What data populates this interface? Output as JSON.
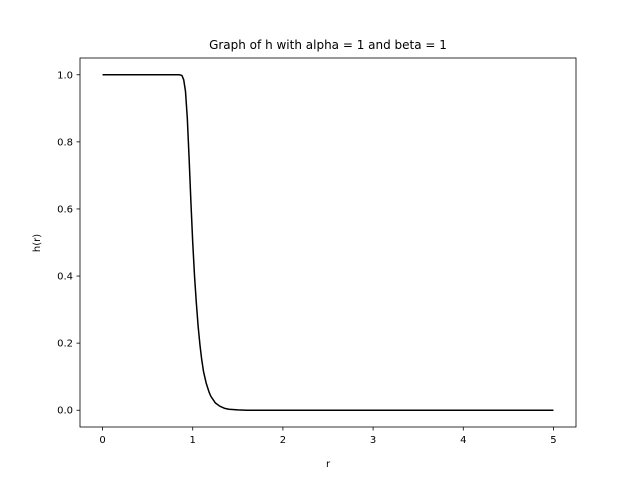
{
  "chart_data": {
    "type": "line",
    "title": "Graph of h with alpha = 1 and beta = 1",
    "xlabel": "r",
    "ylabel": "h(r)",
    "xlim": [
      -0.25,
      5.25
    ],
    "ylim": [
      -0.05,
      1.05
    ],
    "grid": false,
    "x_ticks": [
      0,
      1,
      2,
      3,
      4,
      5
    ],
    "x_tick_labels": [
      "0",
      "1",
      "2",
      "3",
      "4",
      "5"
    ],
    "y_ticks": [
      0.0,
      0.2,
      0.4,
      0.6,
      0.8,
      1.0
    ],
    "y_tick_labels": [
      "0.0",
      "0.2",
      "0.4",
      "0.6",
      "0.8",
      "1.0"
    ],
    "series": [
      {
        "color": "#000000",
        "x": [
          0,
          0.5,
          0.85,
          0.88,
          0.9,
          0.92,
          0.94,
          0.96,
          0.98,
          1.0,
          1.02,
          1.04,
          1.06,
          1.08,
          1.1,
          1.12,
          1.15,
          1.18,
          1.2,
          1.25,
          1.3,
          1.35,
          1.4,
          1.5,
          1.6,
          1.8,
          2.0,
          3.0,
          4.0,
          5.0
        ],
        "y": [
          1.0,
          1.0,
          1.0,
          0.998,
          0.985,
          0.95,
          0.87,
          0.75,
          0.62,
          0.5,
          0.4,
          0.32,
          0.25,
          0.195,
          0.15,
          0.115,
          0.08,
          0.055,
          0.042,
          0.022,
          0.012,
          0.006,
          0.003,
          0.001,
          0.0,
          0.0,
          0.0,
          0.0,
          0.0,
          0.0
        ]
      }
    ]
  }
}
